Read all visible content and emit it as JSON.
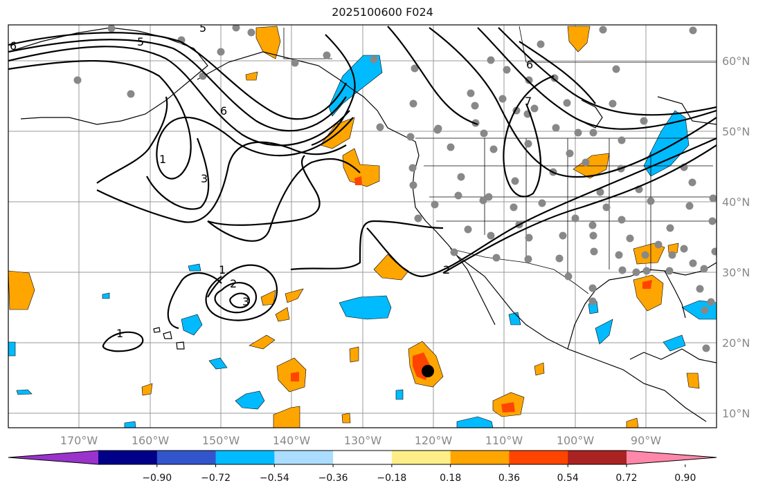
{
  "title": "2025100600 F024",
  "lat_labels": [
    "60°N",
    "50°N",
    "40°N",
    "30°N",
    "20°N",
    "10°N"
  ],
  "lon_labels": [
    "170°W",
    "160°W",
    "150°W",
    "140°W",
    "130°W",
    "120°W",
    "110°W",
    "100°W",
    "90°W"
  ],
  "contour_labels": [
    "6",
    "5",
    "6",
    "1",
    "3",
    "6",
    "7",
    "1",
    "2",
    "3",
    "1",
    "2"
  ],
  "colorbar": {
    "ticks": [
      "−0.90",
      "−0.72",
      "−0.54",
      "−0.36",
      "−0.18",
      "0.18",
      "0.36",
      "0.54",
      "0.72",
      "0.90"
    ],
    "colors": [
      "#9933cc",
      "#000088",
      "#3355cc",
      "#00bbff",
      "#aaddff",
      "#ffffff",
      "#ffee88",
      "#ffa500",
      "#ff4400",
      "#aa2222",
      "#ff88aa"
    ]
  },
  "chart_data": {
    "type": "map",
    "title": "2025100600 F024",
    "projection": "cylindrical",
    "lon_range": [
      -180,
      -80
    ],
    "lat_range": [
      8,
      65
    ],
    "contour_levels": [
      1,
      2,
      3,
      5,
      6,
      7
    ],
    "colorbar_range": [
      -0.9,
      0.9
    ],
    "marker": {
      "lon": -121,
      "lat": 16
    }
  }
}
